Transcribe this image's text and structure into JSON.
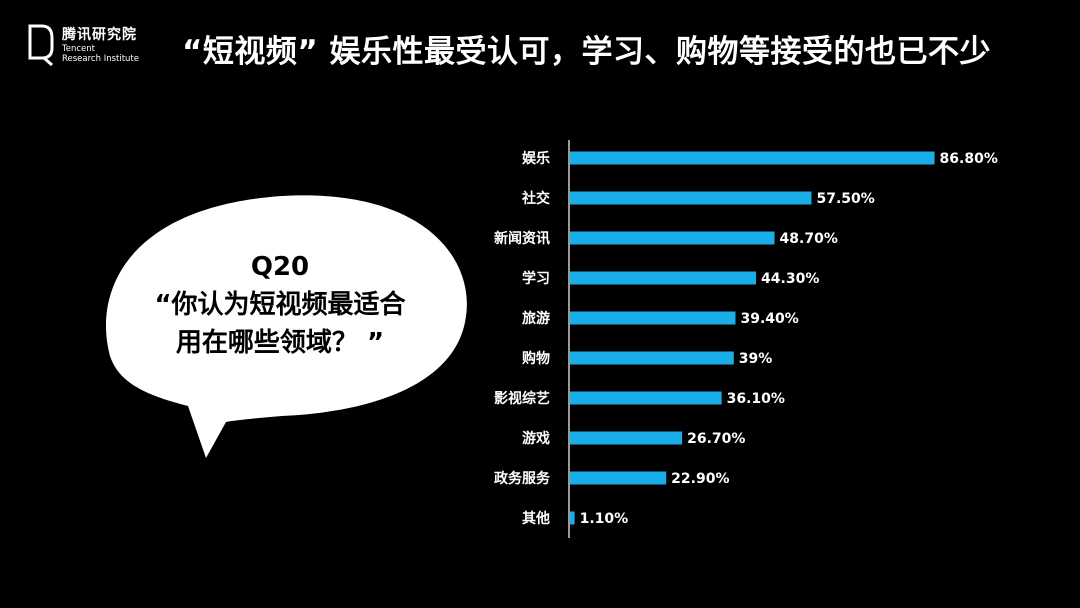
{
  "brand": {
    "name_cn": "腾讯研究院",
    "name_en_line1": "Tencent",
    "name_en_line2": "Research Institute"
  },
  "title": "“短视频” 娱乐性最受认可，学习、购物等接受的也已不少",
  "question": {
    "number": "Q20",
    "line1": "“你认为短视频最适合",
    "line2": "用在哪些领域？ ”"
  },
  "colors": {
    "background": "#000000",
    "bar": "#1aaee8",
    "text": "#ffffff",
    "bubble": "#ffffff"
  },
  "chart_data": {
    "type": "bar",
    "orientation": "horizontal",
    "categories": [
      "娱乐",
      "社交",
      "新闻资讯",
      "学习",
      "旅游",
      "购物",
      "影视综艺",
      "游戏",
      "政务服务",
      "其他"
    ],
    "values": [
      86.8,
      57.5,
      48.7,
      44.3,
      39.4,
      39,
      36.1,
      26.7,
      22.9,
      1.1
    ],
    "value_labels": [
      "86.80%",
      "57.50%",
      "48.70%",
      "44.30%",
      "39.40%",
      "39%",
      "36.10%",
      "26.70%",
      "22.90%",
      "1.10%"
    ],
    "title": "",
    "xlabel": "",
    "ylabel": "",
    "xlim": [
      0,
      100
    ],
    "grid": false,
    "legend": "none"
  }
}
